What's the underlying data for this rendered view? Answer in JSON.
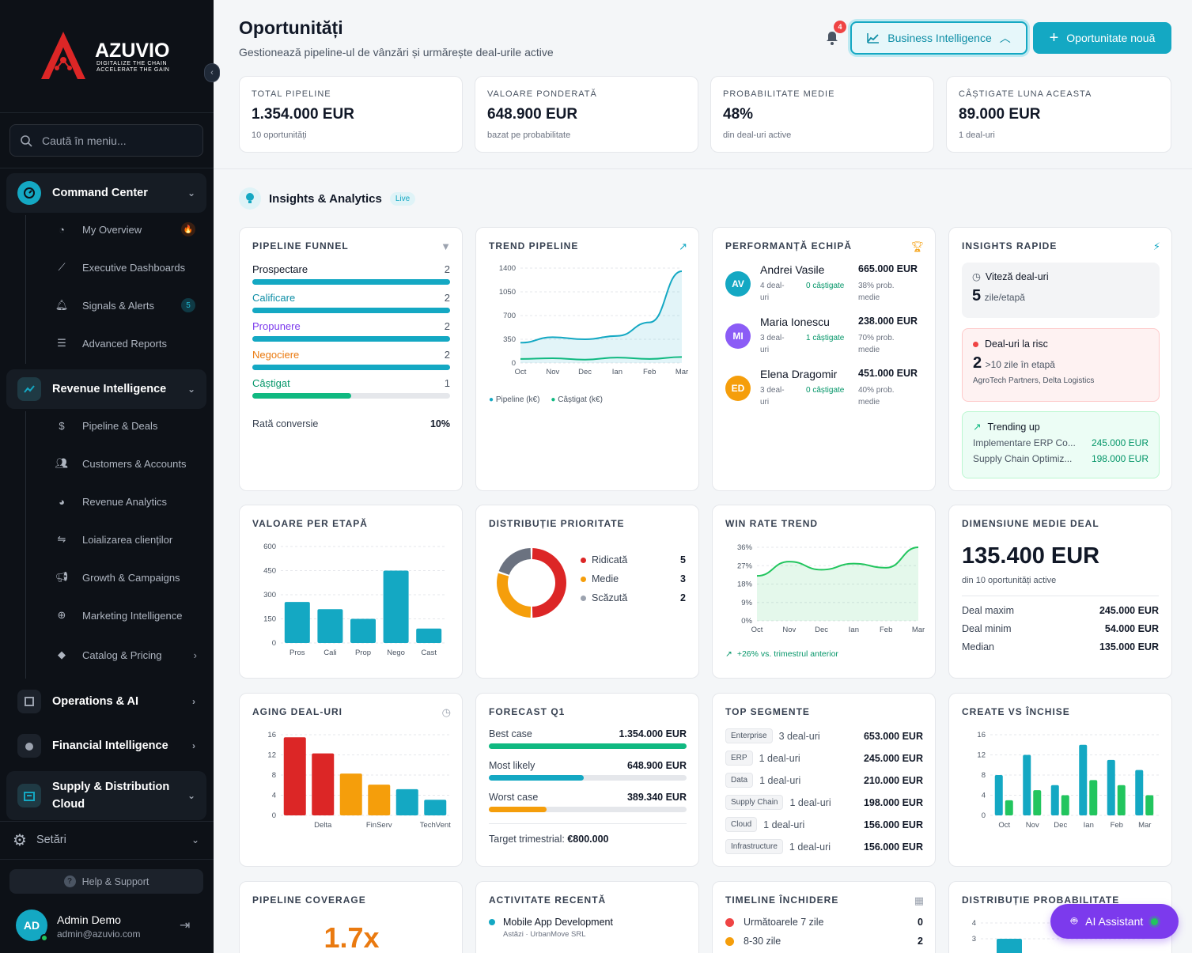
{
  "sidebar": {
    "brand": "AZUVIO",
    "tagline1": "DIGITALIZE THE CHAIN",
    "tagline2": "ACCELERATE THE GAIN",
    "search_placeholder": "Caută în meniu...",
    "groups": [
      {
        "label": "Command Center",
        "icon": "dashboard-icon"
      },
      {
        "label": "Revenue Intelligence",
        "icon": "chart-line-icon"
      },
      {
        "label": "Operations & AI",
        "icon": "chip-icon"
      },
      {
        "label": "Financial Intelligence",
        "icon": "finance-icon"
      },
      {
        "label": "Supply & Distribution",
        "label2": "Cloud",
        "icon": "warehouse-icon"
      }
    ],
    "command_items": [
      {
        "label": "My Overview",
        "icon": "gauge-icon",
        "badge": "🔥"
      },
      {
        "label": "Executive Dashboards",
        "icon": "chart-icon"
      },
      {
        "label": "Signals & Alerts",
        "icon": "bell-icon",
        "badge": "5"
      },
      {
        "label": "Advanced Reports",
        "icon": "report-icon"
      }
    ],
    "revenue_items": [
      {
        "label": "Pipeline & Deals",
        "icon": "dollar-icon"
      },
      {
        "label": "Customers & Accounts",
        "icon": "users-icon"
      },
      {
        "label": "Revenue Analytics",
        "icon": "pie-icon"
      },
      {
        "label": "Loializarea clienților",
        "icon": "handshake-icon"
      },
      {
        "label": "Growth & Campaigns",
        "icon": "megaphone-icon"
      },
      {
        "label": "Marketing Intelligence",
        "icon": "target-icon"
      },
      {
        "label": "Catalog & Pricing",
        "icon": "tag-icon"
      }
    ],
    "settings": "Setări",
    "help": "Help & Support",
    "user": {
      "initials": "AD",
      "name": "Admin Demo",
      "email": "admin@azuvio.com"
    }
  },
  "header": {
    "title": "Oportunități",
    "subtitle": "Gestionează pipeline-ul de vânzări și urmărește deal-urile active",
    "notif_count": "4",
    "bi_button": "Business Intelligence",
    "new_button": "Oportunitate nouă"
  },
  "kpis": [
    {
      "label": "TOTAL PIPELINE",
      "value": "1.354.000 EUR",
      "sub": "10 oportunități"
    },
    {
      "label": "VALOARE PONDERATĂ",
      "value": "648.900 EUR",
      "sub": "bazat pe probabilitate"
    },
    {
      "label": "PROBABILITATE MEDIE",
      "value": "48%",
      "sub": "din deal-uri active"
    },
    {
      "label": "CÂȘTIGATE LUNA ACEASTA",
      "value": "89.000 EUR",
      "sub": "1 deal-uri"
    }
  ],
  "insights": {
    "title": "Insights & Analytics",
    "badge": "Live"
  },
  "funnel": {
    "title": "PIPELINE FUNNEL",
    "rows": [
      {
        "label": "Prospectare",
        "count": "2",
        "fill": 1.0,
        "color": "#14a8c3",
        "text": "#111827"
      },
      {
        "label": "Calificare",
        "count": "2",
        "fill": 1.0,
        "color": "#14a8c3",
        "text": "#0e8ea6"
      },
      {
        "label": "Propunere",
        "count": "2",
        "fill": 1.0,
        "color": "#14a8c3",
        "text": "#7c3aed"
      },
      {
        "label": "Negociere",
        "count": "2",
        "fill": 1.0,
        "color": "#14a8c3",
        "text": "#ea7a10"
      },
      {
        "label": "Câștigat",
        "count": "1",
        "fill": 0.5,
        "color": "#10b981",
        "text": "#059669"
      }
    ],
    "conv_label": "Rată conversie",
    "conv_value": "10%"
  },
  "trend": {
    "title": "TREND PIPELINE",
    "legend": [
      "Pipeline (k€)",
      "Câștigat (k€)"
    ]
  },
  "team": {
    "title": "PERFORMANȚĂ ECHIPĂ",
    "members": [
      {
        "initials": "AV",
        "name": "Andrei Vasile",
        "deals": "4 deal-uri",
        "won": "0 câștigate",
        "value": "665.000 EUR",
        "prob": "38% prob. medie",
        "color": "#14a8c3"
      },
      {
        "initials": "MI",
        "name": "Maria Ionescu",
        "deals": "3 deal-uri",
        "won": "1 câștigate",
        "value": "238.000 EUR",
        "prob": "70% prob. medie",
        "color": "#8b5cf6"
      },
      {
        "initials": "ED",
        "name": "Elena Dragomir",
        "deals": "3 deal-uri",
        "won": "0 câștigate",
        "value": "451.000 EUR",
        "prob": "40% prob. medie",
        "color": "#f59e0b"
      }
    ]
  },
  "quick": {
    "title": "INSIGHTS RAPIDE",
    "speed_label": "Viteză deal-uri",
    "speed_value": "5",
    "speed_unit": "zile/etapă",
    "risk_label": "Deal-uri la risc",
    "risk_value": "2",
    "risk_unit": ">10 zile în etapă",
    "risk_names": "AgroTech Partners, Delta Logistics",
    "trend_label": "Trending up",
    "trend_rows": [
      {
        "name": "Implementare ERP Co...",
        "value": "245.000 EUR"
      },
      {
        "name": "Supply Chain Optimiz...",
        "value": "198.000 EUR"
      }
    ]
  },
  "stage_value": {
    "title": "VALOARE PER ETAPĂ"
  },
  "priority": {
    "title": "DISTRIBUȚIE PRIORITATE",
    "rows": [
      {
        "label": "Ridicată",
        "value": "5",
        "color": "#dc2626"
      },
      {
        "label": "Medie",
        "value": "3",
        "color": "#f59e0b"
      },
      {
        "label": "Scăzută",
        "value": "2",
        "color": "#9ca3af"
      }
    ]
  },
  "winrate": {
    "title": "WIN RATE TREND",
    "note": "+26% vs. trimestrul anterior"
  },
  "avgdeal": {
    "title": "DIMENSIUNE MEDIE DEAL",
    "value": "135.400 EUR",
    "sub": "din 10 oportunități active",
    "rows": [
      {
        "label": "Deal maxim",
        "value": "245.000 EUR"
      },
      {
        "label": "Deal minim",
        "value": "54.000 EUR"
      },
      {
        "label": "Median",
        "value": "135.000 EUR"
      }
    ]
  },
  "aging": {
    "title": "AGING DEAL-URI"
  },
  "forecast": {
    "title": "FORECAST Q1",
    "rows": [
      {
        "label": "Best case",
        "value": "1.354.000 EUR",
        "fill": 1.0,
        "color": "#10b981"
      },
      {
        "label": "Most likely",
        "value": "648.900 EUR",
        "fill": 0.48,
        "color": "#14a8c3"
      },
      {
        "label": "Worst case",
        "value": "389.340 EUR",
        "fill": 0.29,
        "color": "#f59e0b"
      }
    ],
    "target_label": "Target trimestrial:",
    "target_value": "€800.000"
  },
  "segments": {
    "title": "TOP SEGMENTE",
    "rows": [
      {
        "tag": "Enterprise",
        "deals": "3 deal-uri",
        "value": "653.000 EUR"
      },
      {
        "tag": "ERP",
        "deals": "1 deal-uri",
        "value": "245.000 EUR"
      },
      {
        "tag": "Data",
        "deals": "1 deal-uri",
        "value": "210.000 EUR"
      },
      {
        "tag": "Supply Chain",
        "deals": "1 deal-uri",
        "value": "198.000 EUR"
      },
      {
        "tag": "Cloud",
        "deals": "1 deal-uri",
        "value": "156.000 EUR"
      },
      {
        "tag": "Infrastructure",
        "deals": "1 deal-uri",
        "value": "156.000 EUR"
      }
    ]
  },
  "createclose": {
    "title": "CREATE VS ÎNCHISE"
  },
  "coverage": {
    "title": "PIPELINE COVERAGE",
    "value": "1.7x"
  },
  "activity": {
    "title": "ACTIVITATE RECENTĂ",
    "items": [
      {
        "name": "Mobile App Development",
        "meta": "Astăzi · UrbanMove SRL"
      }
    ]
  },
  "timeline": {
    "title": "TIMELINE ÎNCHIDERE",
    "rows": [
      {
        "label": "Următoarele 7 zile",
        "value": "0",
        "color": "#ef4444"
      },
      {
        "label": "8-30 zile",
        "value": "2",
        "color": "#f59e0b"
      }
    ]
  },
  "probdist": {
    "title": "DISTRIBUȚIE PROBABILITATE"
  },
  "ai_button": "AI Assistant",
  "chart_data": [
    {
      "id": "trend",
      "type": "area",
      "categories": [
        "Oct",
        "Nov",
        "Dec",
        "Ian",
        "Feb",
        "Mar"
      ],
      "ylim": [
        0,
        1400
      ],
      "yticks": [
        0,
        350,
        700,
        1050,
        1400
      ],
      "series": [
        {
          "name": "Pipeline (k€)",
          "values": [
            300,
            380,
            350,
            400,
            600,
            1354
          ],
          "color": "#14a8c3"
        },
        {
          "name": "Câștigat (k€)",
          "values": [
            60,
            70,
            50,
            80,
            60,
            89
          ],
          "color": "#10b981"
        }
      ]
    },
    {
      "id": "stage",
      "type": "bar",
      "categories": [
        "Pros",
        "Cali",
        "Prop",
        "Nego",
        "Cast"
      ],
      "values": [
        255,
        210,
        150,
        450,
        90
      ],
      "ylim": [
        0,
        600
      ],
      "yticks": [
        0,
        150,
        300,
        450,
        600
      ],
      "color": "#14a8c3"
    },
    {
      "id": "priority",
      "type": "pie",
      "labels": [
        "Ridicată",
        "Medie",
        "Scăzută"
      ],
      "values": [
        5,
        3,
        2
      ],
      "colors": [
        "#dc2626",
        "#f59e0b",
        "#6b7280"
      ]
    },
    {
      "id": "winrate",
      "type": "area",
      "categories": [
        "Oct",
        "Nov",
        "Dec",
        "Ian",
        "Feb",
        "Mar"
      ],
      "ylim": [
        0,
        36
      ],
      "yticks": [
        0,
        9,
        18,
        27,
        36
      ],
      "ytick_labels": [
        "0%",
        "9%",
        "18%",
        "27%",
        "36%"
      ],
      "series": [
        {
          "name": "Win rate",
          "values": [
            22,
            29,
            25,
            28,
            26,
            36
          ],
          "color": "#22c55e"
        }
      ]
    },
    {
      "id": "aging",
      "type": "bar",
      "categories": [
        "",
        "Delta",
        "",
        "FinServ",
        "",
        "TechVent"
      ],
      "values": [
        15.5,
        12.3,
        8.3,
        6.1,
        5.2,
        3.1
      ],
      "ylim": [
        0,
        16
      ],
      "yticks": [
        0,
        4,
        8,
        12,
        16
      ],
      "colors": [
        "#dc2626",
        "#dc2626",
        "#f59e0b",
        "#f59e0b",
        "#14a8c3",
        "#14a8c3"
      ]
    },
    {
      "id": "createclose",
      "type": "bar",
      "categories": [
        "Oct",
        "Nov",
        "Dec",
        "Ian",
        "Feb",
        "Mar"
      ],
      "ylim": [
        0,
        16
      ],
      "yticks": [
        0,
        4,
        8,
        12,
        16
      ],
      "series": [
        {
          "name": "Create",
          "values": [
            8,
            12,
            6,
            14,
            11,
            9
          ],
          "color": "#14a8c3"
        },
        {
          "name": "Închise",
          "values": [
            3,
            5,
            4,
            7,
            6,
            4
          ],
          "color": "#22c55e"
        }
      ]
    },
    {
      "id": "probdist",
      "type": "bar",
      "categories": [
        ""
      ],
      "values": [
        4
      ],
      "ylim": [
        0,
        4
      ],
      "yticks": [
        3,
        4
      ],
      "color": "#14a8c3"
    }
  ]
}
